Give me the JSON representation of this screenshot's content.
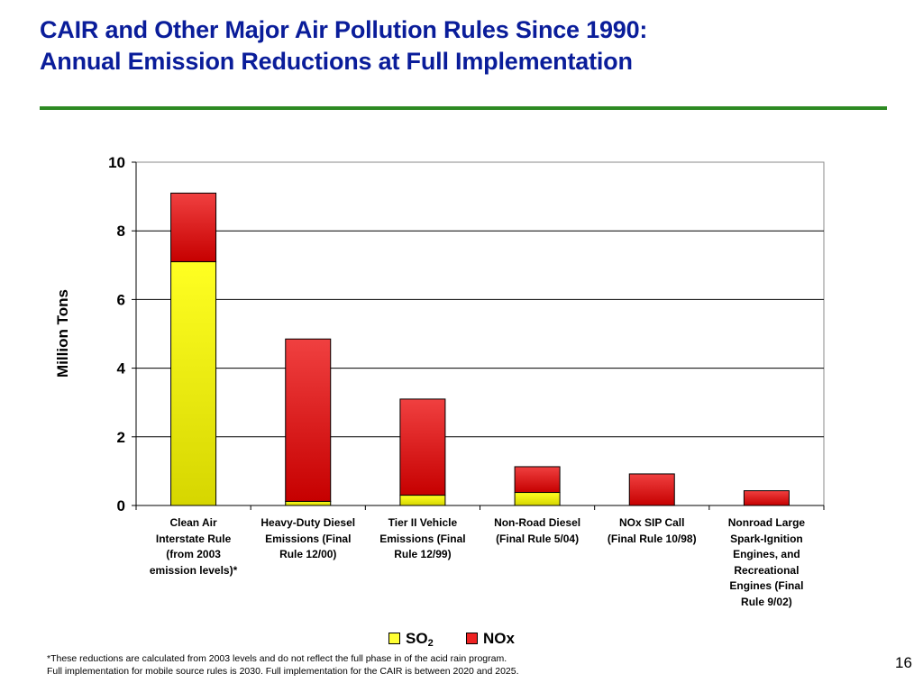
{
  "slide": {
    "title_lines": [
      "CAIR and Other Major Air Pollution Rules Since 1990:",
      "Annual Emission Reductions at Full Implementation"
    ],
    "footnote_lines": [
      "*These reductions are calculated from 2003 levels and do not reflect the full phase in of the acid rain program.",
      "Full implementation for mobile source rules is 2030.  Full implementation for the CAIR is between 2020 and 2025."
    ],
    "page_number": "16",
    "colors": {
      "title": "#0a1d9a",
      "rule": "#2d8a22"
    }
  },
  "chart_data": {
    "type": "bar",
    "stacked": true,
    "ylabel": "Million Tons",
    "ylim": [
      0,
      10
    ],
    "yticks": [
      "0",
      "2",
      "4",
      "6",
      "8",
      "10"
    ],
    "grid": true,
    "legend_position": "bottom",
    "categories": [
      [
        "Clean Air",
        "Interstate Rule",
        "(from 2003",
        "emission levels)*"
      ],
      [
        "Heavy-Duty Diesel",
        "Emissions (Final",
        "Rule 12/00)"
      ],
      [
        "Tier II Vehicle",
        "Emissions (Final",
        "Rule 12/99)"
      ],
      [
        "Non-Road Diesel",
        "(Final Rule 5/04)"
      ],
      [
        "NOx SIP Call",
        "(Final Rule 10/98)"
      ],
      [
        "Nonroad Large",
        "Spark-Ignition",
        "Engines, and",
        "Recreational",
        "Engines (Final",
        "Rule 9/02)"
      ]
    ],
    "series": [
      {
        "name": "SO",
        "name_sub": "2",
        "color": "#ffff00",
        "values": [
          7.1,
          0.12,
          0.3,
          0.38,
          0.0,
          0.0
        ]
      },
      {
        "name": "NOx",
        "color": "#ee1111",
        "values": [
          2.0,
          4.73,
          2.8,
          0.75,
          0.92,
          0.43
        ]
      }
    ]
  }
}
